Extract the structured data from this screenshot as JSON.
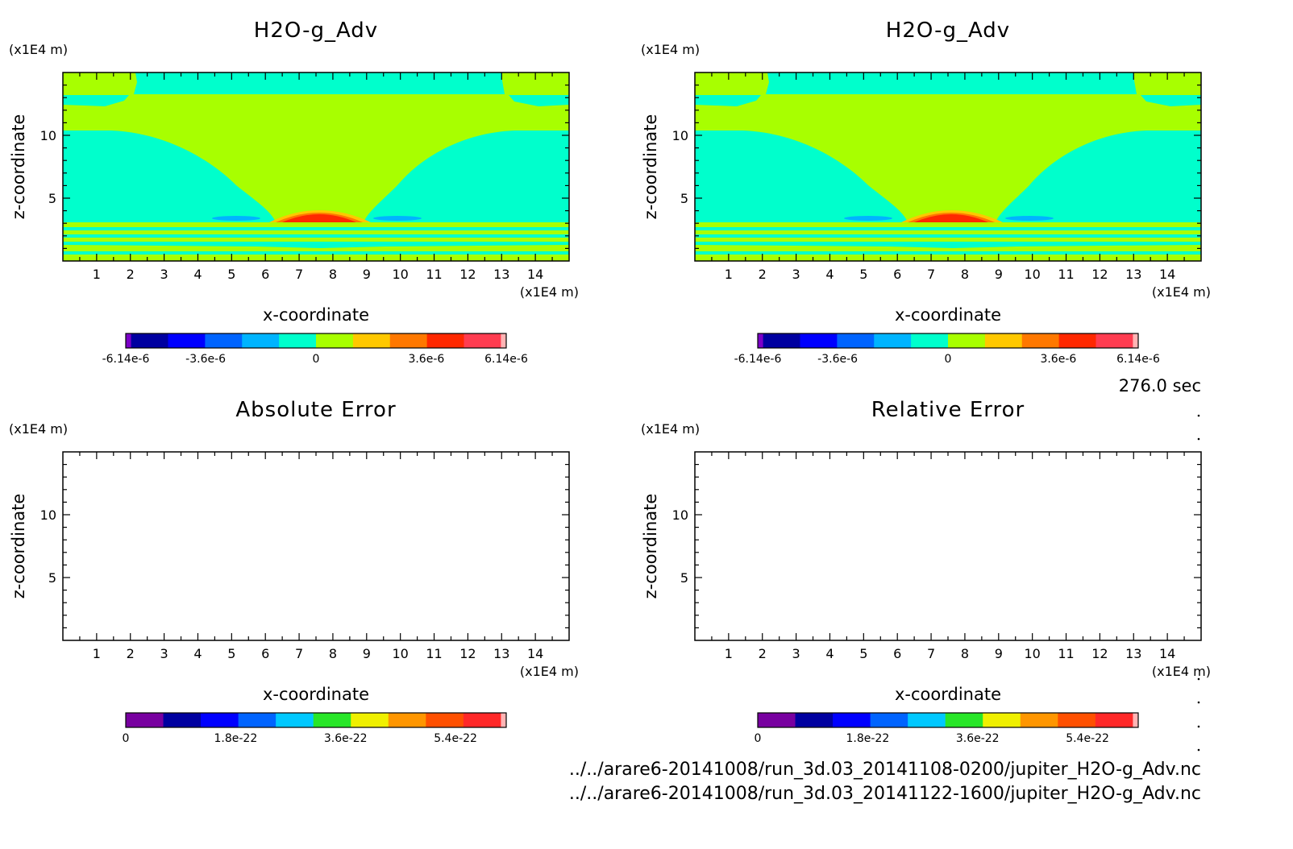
{
  "figure": {
    "time_label": "276.0 sec",
    "file_paths": [
      "../../arare6-20141008/run_3d.03_20141108-0200/jupiter_H2O-g_Adv.nc",
      "../../arare6-20141008/run_3d.03_20141122-1600/jupiter_H2O-g_Adv.nc"
    ]
  },
  "chart_data": [
    {
      "type": "heatmap",
      "title": "H2O-g_Adv",
      "xlabel": "x-coordinate",
      "ylabel": "z-coordinate",
      "x_unit": "(x1E4 m)",
      "z_unit": "(x1E4 m)",
      "xlim": [
        0,
        15
      ],
      "zlim": [
        0,
        15
      ],
      "x_ticks": [
        "1",
        "2",
        "3",
        "4",
        "5",
        "6",
        "7",
        "8",
        "9",
        "10",
        "11",
        "12",
        "13",
        "14"
      ],
      "z_ticks": [
        "5",
        "10"
      ],
      "colorbar": {
        "colors": [
          "#7b00c8",
          "#0000a0",
          "#0000ff",
          "#0064ff",
          "#00b4ff",
          "#00ffcc",
          "#a8ff00",
          "#ffc800",
          "#ff7800",
          "#ff2800",
          "#ff3c50",
          "#ffb4b4"
        ],
        "labels": [
          "-6.14e-6",
          "-3.6e-6",
          "0",
          "3.6e-6",
          "6.14e-6"
        ]
      },
      "features": "near-zero field (green, 0 level) with cyan negative regions in upper corners and lower flanks, striped bands near bottom, positive red/orange dome centred near x=7.6 at z≈3.5"
    },
    {
      "type": "heatmap",
      "title": "H2O-g_Adv",
      "xlabel": "x-coordinate",
      "ylabel": "z-coordinate",
      "x_unit": "(x1E4 m)",
      "z_unit": "(x1E4 m)",
      "xlim": [
        0,
        15
      ],
      "zlim": [
        0,
        15
      ],
      "x_ticks": [
        "1",
        "2",
        "3",
        "4",
        "5",
        "6",
        "7",
        "8",
        "9",
        "10",
        "11",
        "12",
        "13",
        "14"
      ],
      "z_ticks": [
        "5",
        "10"
      ],
      "colorbar": {
        "colors": [
          "#7b00c8",
          "#0000a0",
          "#0000ff",
          "#0064ff",
          "#00b4ff",
          "#00ffcc",
          "#a8ff00",
          "#ffc800",
          "#ff7800",
          "#ff2800",
          "#ff3c50",
          "#ffb4b4"
        ],
        "labels": [
          "-6.14e-6",
          "-3.6e-6",
          "0",
          "3.6e-6",
          "6.14e-6"
        ]
      },
      "features": "identical to left panel"
    },
    {
      "type": "heatmap",
      "title": "Absolute Error",
      "xlabel": "x-coordinate",
      "ylabel": "z-coordinate",
      "x_unit": "(x1E4 m)",
      "z_unit": "(x1E4 m)",
      "xlim": [
        0,
        15
      ],
      "zlim": [
        0,
        15
      ],
      "x_ticks": [
        "1",
        "2",
        "3",
        "4",
        "5",
        "6",
        "7",
        "8",
        "9",
        "10",
        "11",
        "12",
        "13",
        "14"
      ],
      "z_ticks": [
        "5",
        "10"
      ],
      "values": "all zero (blank plot)",
      "colorbar": {
        "colors": [
          "#7800a0",
          "#0000a0",
          "#0000ff",
          "#0064ff",
          "#00c8ff",
          "#28e628",
          "#f0f000",
          "#ff9600",
          "#ff5000",
          "#ff2828",
          "#ffb4b4"
        ],
        "labels": [
          "0",
          "1.8e-22",
          "3.6e-22",
          "5.4e-22"
        ]
      }
    },
    {
      "type": "heatmap",
      "title": "Relative Error",
      "xlabel": "x-coordinate",
      "ylabel": "z-coordinate",
      "x_unit": "(x1E4 m)",
      "z_unit": "(x1E4 m)",
      "xlim": [
        0,
        15
      ],
      "zlim": [
        0,
        15
      ],
      "x_ticks": [
        "1",
        "2",
        "3",
        "4",
        "5",
        "6",
        "7",
        "8",
        "9",
        "10",
        "11",
        "12",
        "13",
        "14"
      ],
      "z_ticks": [
        "5",
        "10"
      ],
      "values": "all zero (blank plot)",
      "colorbar": {
        "colors": [
          "#7800a0",
          "#0000a0",
          "#0000ff",
          "#0064ff",
          "#00c8ff",
          "#28e628",
          "#f0f000",
          "#ff9600",
          "#ff5000",
          "#ff2828",
          "#ffb4b4"
        ],
        "labels": [
          "0",
          "1.8e-22",
          "3.6e-22",
          "5.4e-22"
        ]
      }
    }
  ],
  "colors": {
    "background": "#ffffff",
    "axes": "#000000"
  }
}
